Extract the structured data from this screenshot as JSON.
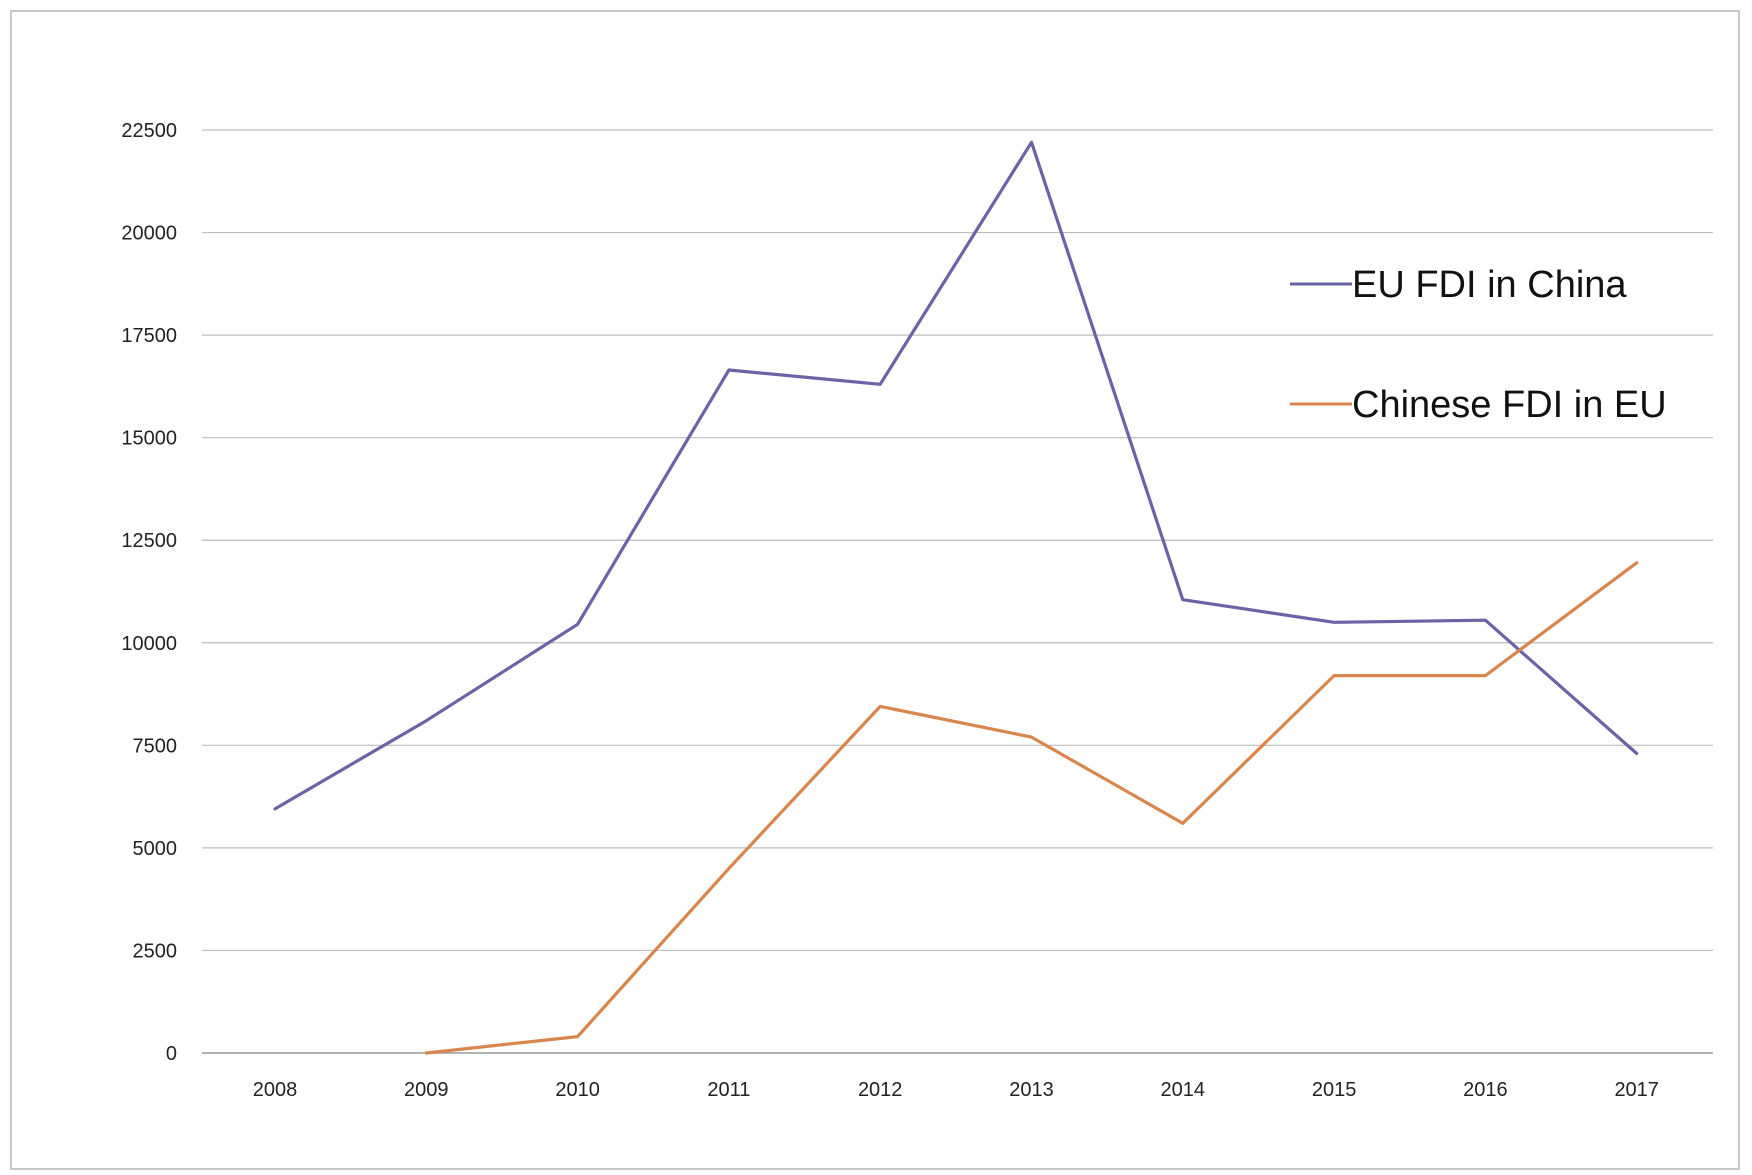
{
  "chart_data": {
    "type": "line",
    "title": "",
    "xlabel": "",
    "ylabel": "",
    "categories": [
      "2008",
      "2009",
      "2010",
      "2011",
      "2012",
      "2013",
      "2014",
      "2015",
      "2016",
      "2017"
    ],
    "ylim": [
      0,
      22500
    ],
    "yticks": [
      "0",
      "2500",
      "5000",
      "7500",
      "10000",
      "12500",
      "15000",
      "17500",
      "20000",
      "22500"
    ],
    "grid": true,
    "legend_position": "right",
    "series": [
      {
        "name": "EU FDI in China",
        "color": "#6b63a6",
        "values": [
          5950,
          8100,
          10450,
          16650,
          16300,
          22200,
          11050,
          10500,
          10550,
          7300
        ]
      },
      {
        "name": "Chinese FDI in EU",
        "color": "#d9864e",
        "values": [
          null,
          0,
          400,
          4500,
          8450,
          7700,
          5600,
          9200,
          9200,
          11950
        ]
      }
    ]
  }
}
